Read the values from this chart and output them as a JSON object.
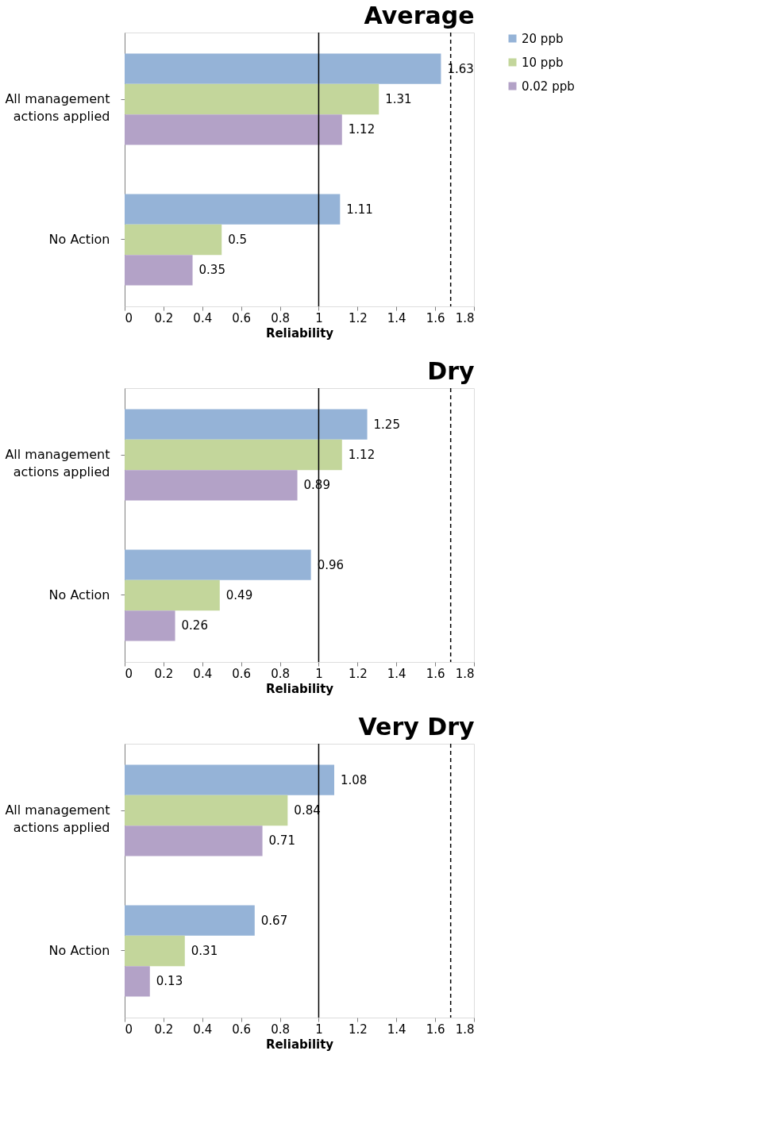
{
  "chart_data": [
    {
      "type": "bar",
      "orientation": "horizontal",
      "title": "Average",
      "xlabel": "Reliability",
      "categories": [
        "All management actions applied",
        "No Action"
      ],
      "series": [
        {
          "name": "20 ppb",
          "color": "#95b3d7",
          "values": [
            1.63,
            1.11
          ]
        },
        {
          "name": "10 ppb",
          "color": "#c3d69b",
          "values": [
            1.31,
            0.5
          ]
        },
        {
          "name": "0.02 ppb",
          "color": "#b3a2c7",
          "values": [
            1.12,
            0.35
          ]
        }
      ],
      "xlim": [
        0,
        1.8
      ],
      "xticks": [
        0,
        0.2,
        0.4,
        0.6,
        0.8,
        1,
        1.2,
        1.4,
        1.6,
        1.8
      ],
      "data_labels": true,
      "legend": "right",
      "grid": false,
      "ref_lines": [
        {
          "axis": "x",
          "value": 1,
          "label": null,
          "color": "#000000",
          "line_style": "solid"
        },
        {
          "axis": "x",
          "value": 1.68,
          "label": null,
          "color": "#000000",
          "line_style": "dashed"
        }
      ]
    },
    {
      "type": "bar",
      "orientation": "horizontal",
      "title": "Dry",
      "xlabel": "Reliability",
      "categories": [
        "All management actions applied",
        "No Action"
      ],
      "series": [
        {
          "name": "20 ppb",
          "color": "#95b3d7",
          "values": [
            1.25,
            0.96
          ]
        },
        {
          "name": "10 ppb",
          "color": "#c3d69b",
          "values": [
            1.12,
            0.49
          ]
        },
        {
          "name": "0.02 ppb",
          "color": "#b3a2c7",
          "values": [
            0.89,
            0.26
          ]
        }
      ],
      "xlim": [
        0,
        1.8
      ],
      "xticks": [
        0,
        0.2,
        0.4,
        0.6,
        0.8,
        1,
        1.2,
        1.4,
        1.6,
        1.8
      ],
      "data_labels": true,
      "legend": "right",
      "grid": false,
      "ref_lines": [
        {
          "axis": "x",
          "value": 1,
          "label": null,
          "color": "#000000",
          "line_style": "solid"
        },
        {
          "axis": "x",
          "value": 1.68,
          "label": null,
          "color": "#000000",
          "line_style": "dashed"
        }
      ]
    },
    {
      "type": "bar",
      "orientation": "horizontal",
      "title": "Very Dry",
      "xlabel": "Reliability",
      "categories": [
        "All management actions applied",
        "No Action"
      ],
      "series": [
        {
          "name": "20 ppb",
          "color": "#95b3d7",
          "values": [
            1.08,
            0.67
          ]
        },
        {
          "name": "10 ppb",
          "color": "#c3d69b",
          "values": [
            0.84,
            0.31
          ]
        },
        {
          "name": "0.02 ppb",
          "color": "#b3a2c7",
          "values": [
            0.71,
            0.13
          ]
        }
      ],
      "xlim": [
        0,
        1.8
      ],
      "xticks": [
        0,
        0.2,
        0.4,
        0.6,
        0.8,
        1,
        1.2,
        1.4,
        1.6,
        1.8
      ],
      "data_labels": true,
      "legend": "right",
      "grid": false,
      "ref_lines": [
        {
          "axis": "x",
          "value": 1,
          "label": null,
          "color": "#000000",
          "line_style": "solid"
        },
        {
          "axis": "x",
          "value": 1.68,
          "label": null,
          "color": "#000000",
          "line_style": "dashed"
        }
      ]
    }
  ]
}
